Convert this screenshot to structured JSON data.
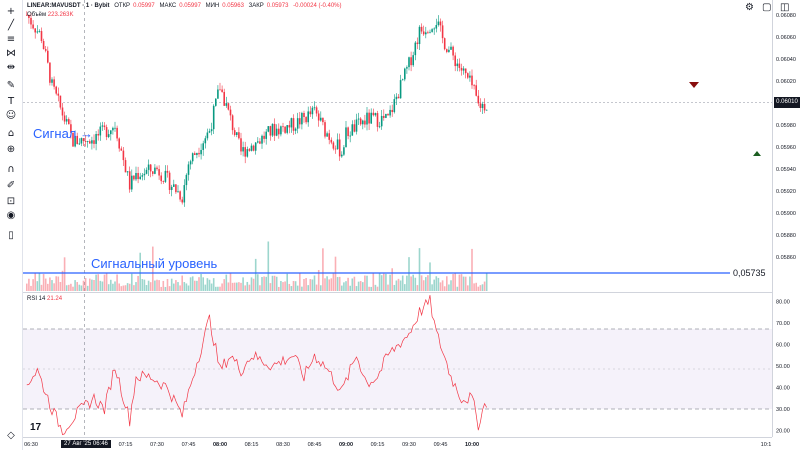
{
  "legend": {
    "symbol": "LINEAR:MAVUSDT · 1 · Bybit",
    "open_label": "ОТКР",
    "open_value": "0.05997",
    "high_label": "МАКС",
    "high_value": "0.05997",
    "low_label": "МИН",
    "low_value": "0.05963",
    "close_label": "ЗАКР",
    "close_value": "0.05973",
    "change": "-0.00024 (-0.40%)",
    "volume_label": "Объём",
    "volume_value": "223.263K",
    "rsi_label": "RSI 14",
    "rsi_value": "21.24",
    "down_color": "#f23645",
    "up_color": "#089981"
  },
  "annotations": {
    "signal_label": "Сигнал",
    "signal_arrow": "→",
    "level_label": "Сигнальный уровень",
    "level_value": "0,05735",
    "level_color": "#2962ff"
  },
  "price_tag": "0.06010",
  "tv_logo": "17",
  "crosshair_date": "27 Авг '25 06:46",
  "toolbar_icons": [
    "crosshair-icon",
    "trendline-icon",
    "fib-icon",
    "pattern-icon",
    "measure-icon",
    "brush-icon",
    "text-icon",
    "emoji-icon",
    "ruler-icon",
    "zoom-icon",
    "magnet-icon",
    "lock-draw-icon",
    "lock-icon",
    "eye-icon",
    "trash-icon"
  ],
  "chart_data": [
    {
      "type": "candlestick",
      "title": "LINEAR:MAVUSDT · 1 · Bybit",
      "x_tick_labels": [
        "06:30",
        "07:00",
        "07:15",
        "07:30",
        "07:45",
        "08:00",
        "08:15",
        "08:30",
        "08:45",
        "09:00",
        "09:15",
        "09:30",
        "09:45",
        "10:00",
        "10:1"
      ],
      "y_tick_labels": [
        "0.06080",
        "0.06060",
        "0.06040",
        "0.06020",
        "0.05980",
        "0.05960",
        "0.05940",
        "0.05920",
        "0.05900",
        "0.05880",
        "0.05860"
      ],
      "ylim": [
        0.05848,
        0.06089
      ],
      "close_path": {
        "x": [
          "06:28",
          "06:35",
          "06:40",
          "06:46",
          "06:50",
          "07:00",
          "07:10",
          "07:17",
          "07:20",
          "07:30",
          "07:42",
          "07:45",
          "07:55",
          "08:00",
          "08:10",
          "08:18",
          "08:25",
          "08:35",
          "08:45",
          "08:50",
          "08:58",
          "09:00",
          "09:10",
          "09:20",
          "09:30",
          "09:35",
          "09:43",
          "09:46",
          "09:50",
          "10:00",
          "10:03"
        ],
        "y": [
          0.0608,
          0.0606,
          0.06015,
          0.05985,
          0.05965,
          0.05968,
          0.0598,
          0.05925,
          0.05935,
          0.0594,
          0.05915,
          0.05945,
          0.05975,
          0.06015,
          0.05955,
          0.05965,
          0.05975,
          0.0598,
          0.05992,
          0.05975,
          0.05955,
          0.05972,
          0.05985,
          0.05985,
          0.06035,
          0.06065,
          0.06075,
          0.06058,
          0.06045,
          0.06015,
          0.05998
        ]
      },
      "markers": [
        {
          "type": "sell-arrow",
          "x": "09:48",
          "y": 0.06036
        },
        {
          "type": "buy-arrow",
          "x": "10:06",
          "y": 0.05967
        }
      ]
    },
    {
      "type": "bar",
      "title": "Объём",
      "value": "223.263K",
      "signal_level": 0.05735
    },
    {
      "type": "line",
      "title": "RSI 14",
      "y_tick_labels": [
        "80.00",
        "70.00",
        "60.00",
        "50.00",
        "40.00",
        "30.00",
        "20.00"
      ],
      "ylim": [
        17,
        83
      ],
      "band": [
        30,
        70
      ],
      "x": [
        "06:28",
        "06:33",
        "06:40",
        "06:45",
        "06:52",
        "07:00",
        "07:05",
        "07:10",
        "07:17",
        "07:20",
        "07:27",
        "07:35",
        "07:42",
        "07:47",
        "07:50",
        "07:55",
        "08:00",
        "08:05",
        "08:10",
        "08:15",
        "08:25",
        "08:35",
        "08:40",
        "08:45",
        "08:50",
        "08:58",
        "09:05",
        "09:10",
        "09:15",
        "09:20",
        "09:30",
        "09:35",
        "09:40",
        "09:43",
        "09:45",
        "09:50",
        "09:55",
        "10:00",
        "10:03",
        "10:06",
        "10:08"
      ],
      "values": [
        42,
        48,
        30,
        20,
        28,
        35,
        30,
        50,
        25,
        45,
        45,
        40,
        27,
        45,
        55,
        72,
        48,
        55,
        48,
        55,
        50,
        55,
        45,
        55,
        50,
        38,
        55,
        42,
        45,
        55,
        65,
        75,
        80,
        65,
        60,
        45,
        35,
        35,
        23,
        32,
        35
      ],
      "current_value": "21.24"
    }
  ]
}
